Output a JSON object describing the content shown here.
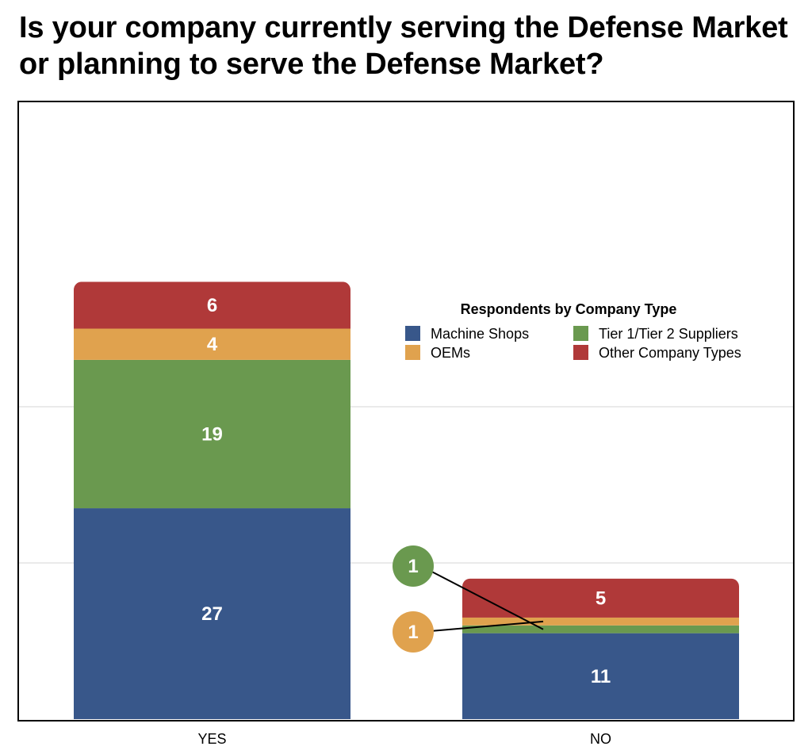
{
  "title": "Is your company currently serving the Defense Market or planning to serve the Defense Market?",
  "chart_data": {
    "type": "bar",
    "stacked": true,
    "categories": [
      "YES",
      "NO"
    ],
    "series": [
      {
        "name": "Machine Shops",
        "color": "#38578a",
        "values": [
          27,
          11
        ]
      },
      {
        "name": "Tier 1/Tier 2 Suppliers",
        "color": "#6a994f",
        "values": [
          19,
          1
        ]
      },
      {
        "name": "OEMs",
        "color": "#e0a24e",
        "values": [
          4,
          1
        ]
      },
      {
        "name": "Other Company Types",
        "color": "#b03939",
        "values": [
          6,
          5
        ]
      }
    ],
    "ylim": [
      0,
      60
    ],
    "grid": true,
    "legend": {
      "title": "Respondents by Company Type",
      "placement": "center-right"
    },
    "callouts": "small segments labeled with circular callouts"
  }
}
